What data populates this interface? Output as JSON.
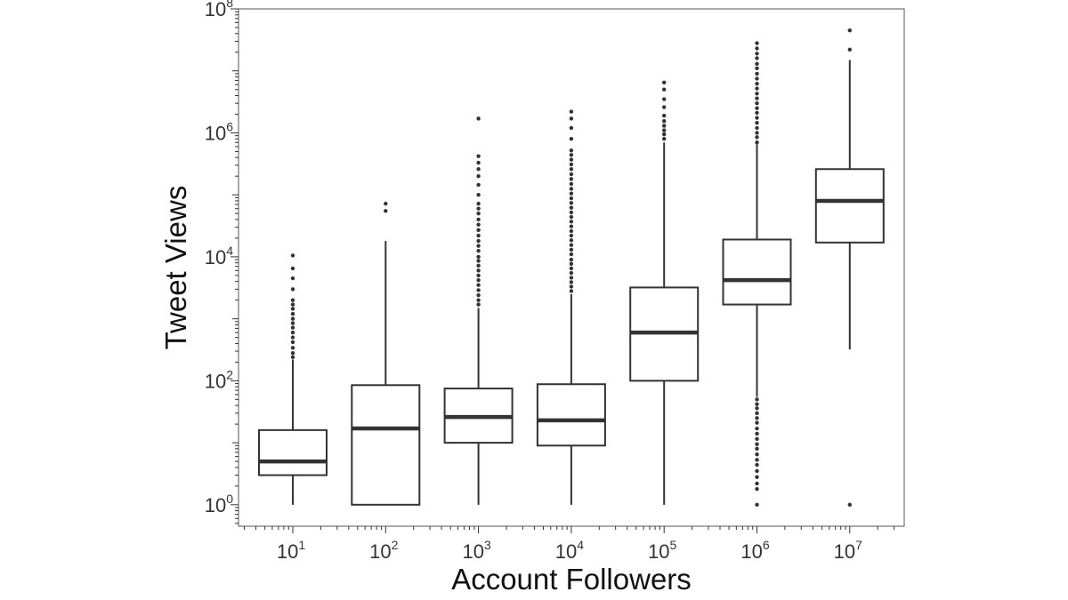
{
  "chart_data": {
    "type": "boxplot",
    "title": "",
    "xlabel": "Account Followers",
    "ylabel": "Tweet Views",
    "xscale": "log",
    "yscale": "log",
    "ylim": [
      0.45,
      100000000
    ],
    "grid": false,
    "legend": "none",
    "colors": {
      "line": "#333333",
      "box_fill": "#ffffff",
      "frame": "#555555"
    },
    "x_ticks": [
      {
        "base": "10",
        "exp": "1"
      },
      {
        "base": "10",
        "exp": "2"
      },
      {
        "base": "10",
        "exp": "3"
      },
      {
        "base": "10",
        "exp": "4"
      },
      {
        "base": "10",
        "exp": "5"
      },
      {
        "base": "10",
        "exp": "6"
      },
      {
        "base": "10",
        "exp": "7"
      }
    ],
    "y_ticks": [
      {
        "base": "10",
        "exp": "0",
        "value": 1
      },
      {
        "base": "10",
        "exp": "2",
        "value": 100
      },
      {
        "base": "10",
        "exp": "4",
        "value": 10000
      },
      {
        "base": "10",
        "exp": "6",
        "value": 1000000
      },
      {
        "base": "10",
        "exp": "8",
        "value": 100000000
      }
    ],
    "series": [
      {
        "category": "10^1",
        "whisker_low": 1,
        "q1": 3,
        "median": 5,
        "q3": 16,
        "whisker_high": 220,
        "outliers": [
          240,
          280,
          340,
          420,
          500,
          600,
          720,
          850,
          1000,
          1200,
          1450,
          1700,
          2000,
          3000,
          4500,
          6500,
          10500
        ]
      },
      {
        "category": "10^2",
        "whisker_low": 1,
        "q1": 1,
        "median": 17,
        "q3": 85,
        "whisker_high": 18000,
        "outliers": [
          55000,
          72000
        ]
      },
      {
        "category": "10^3",
        "whisker_low": 1,
        "q1": 10,
        "median": 26,
        "q3": 75,
        "whisker_high": 1500,
        "outliers": [
          1700,
          2000,
          2400,
          2900,
          3500,
          4200,
          5000,
          6000,
          7200,
          8600,
          10000,
          12500,
          15000,
          18000,
          22000,
          27000,
          33000,
          40000,
          50000,
          60000,
          72000,
          100000,
          145000,
          200000,
          260000,
          330000,
          420000,
          1700000
        ]
      },
      {
        "category": "10^4",
        "whisker_low": 1,
        "q1": 9,
        "median": 23,
        "q3": 88,
        "whisker_high": 2500,
        "outliers": [
          2800,
          3300,
          3900,
          4600,
          5500,
          6500,
          7700,
          9000,
          11000,
          13000,
          15500,
          18500,
          22000,
          26000,
          31000,
          37000,
          44000,
          52000,
          62000,
          74000,
          88000,
          105000,
          125000,
          150000,
          180000,
          215000,
          260000,
          310000,
          370000,
          440000,
          520000,
          800000,
          1200000,
          1700000,
          2200000
        ]
      },
      {
        "category": "10^5",
        "whisker_low": 1,
        "q1": 100,
        "median": 600,
        "q3": 3200,
        "whisker_high": 700000,
        "outliers": [
          800000,
          950000,
          1100000,
          1300000,
          1550000,
          1900000,
          2600000,
          3500000,
          5000000,
          6500000
        ]
      },
      {
        "category": "10^6",
        "whisker_low": 55,
        "q1": 1700,
        "median": 4200,
        "q3": 19000,
        "whisker_high": 650000,
        "outliers_low": [
          50,
          42,
          36,
          30,
          25,
          21,
          17,
          14,
          11.5,
          9.5,
          8,
          6.5,
          5.3,
          4.4,
          3.5,
          2.8,
          2.2,
          1.8,
          1
        ],
        "outliers": [
          700000,
          850000,
          1000000,
          1200000,
          1450000,
          1750000,
          2100000,
          2500000,
          3000000,
          3600000,
          4300000,
          5200000,
          6200000,
          7500000,
          9000000,
          11000000,
          13000000,
          16000000,
          19000000,
          23000000,
          28000000
        ]
      },
      {
        "category": "10^7",
        "whisker_low": 320,
        "q1": 17000,
        "median": 80000,
        "q3": 260000,
        "whisker_high": 15000000,
        "outliers_low": [
          1
        ],
        "outliers": [
          22000000,
          45000000
        ]
      }
    ]
  }
}
